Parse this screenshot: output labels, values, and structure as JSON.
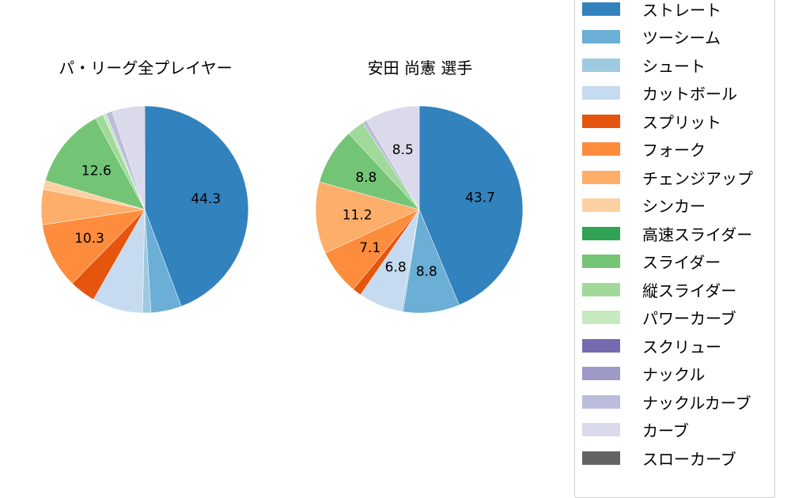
{
  "chart_data": [
    {
      "type": "pie",
      "title": "パ・リーグ全プレイヤー",
      "center": [
        183,
        265
      ],
      "radius": 131,
      "start_angle": 90,
      "direction": "clockwise",
      "categories": [
        "ストレート",
        "ツーシーム",
        "シュート",
        "カットボール",
        "スプリット",
        "フォーク",
        "チェンジアップ",
        "シンカー",
        "スライダー",
        "縦スライダー",
        "パワーカーブ",
        "ナックルカーブ",
        "カーブ",
        "スローカーブ"
      ],
      "values": [
        44.3,
        4.8,
        1.3,
        7.9,
        4.1,
        10.3,
        5.5,
        1.4,
        12.6,
        1.3,
        0.5,
        1.0,
        5.0,
        0.1
      ],
      "labels_shown": {
        "ストレート": "44.3",
        "フォーク": "10.3",
        "スライダー": "12.6"
      }
    },
    {
      "type": "pie",
      "title": "安田 尚憲  選手",
      "center": [
        530,
        265
      ],
      "radius": 131,
      "start_angle": 90,
      "direction": "clockwise",
      "categories": [
        "ストレート",
        "ツーシーム",
        "シュート",
        "カットボール",
        "スプリット",
        "フォーク",
        "チェンジアップ",
        "スライダー",
        "縦スライダー",
        "ナックルカーブ",
        "カーブ"
      ],
      "values": [
        43.7,
        8.8,
        0.3,
        6.8,
        1.4,
        7.1,
        11.2,
        8.8,
        2.7,
        0.7,
        8.5
      ],
      "labels_shown": {
        "ストレート": "43.7",
        "ツーシーム": "8.8",
        "カットボール": "6.8",
        "フォーク": "7.1",
        "チェンジアップ": "11.2",
        "スライダー": "8.8",
        "カーブ": "8.5"
      }
    }
  ],
  "titles": {
    "left": "パ・リーグ全プレイヤー",
    "right": "安田 尚憲  選手"
  },
  "legend": {
    "position": "right",
    "items": [
      {
        "label": "ストレート",
        "color": "#3182bd"
      },
      {
        "label": "ツーシーム",
        "color": "#6baed6"
      },
      {
        "label": "シュート",
        "color": "#9ecae1"
      },
      {
        "label": "カットボール",
        "color": "#c6dbef"
      },
      {
        "label": "スプリット",
        "color": "#e6550d"
      },
      {
        "label": "フォーク",
        "color": "#fd8d3c"
      },
      {
        "label": "チェンジアップ",
        "color": "#fdae6b"
      },
      {
        "label": "シンカー",
        "color": "#fdd0a2"
      },
      {
        "label": "高速スライダー",
        "color": "#31a354"
      },
      {
        "label": "スライダー",
        "color": "#74c476"
      },
      {
        "label": "縦スライダー",
        "color": "#a1d99b"
      },
      {
        "label": "パワーカーブ",
        "color": "#c7e9c0"
      },
      {
        "label": "スクリュー",
        "color": "#756bb1"
      },
      {
        "label": "ナックル",
        "color": "#9e9ac8"
      },
      {
        "label": "ナックルカーブ",
        "color": "#bcbddc"
      },
      {
        "label": "カーブ",
        "color": "#dadaeb"
      },
      {
        "label": "スローカーブ",
        "color": "#636363"
      }
    ]
  }
}
